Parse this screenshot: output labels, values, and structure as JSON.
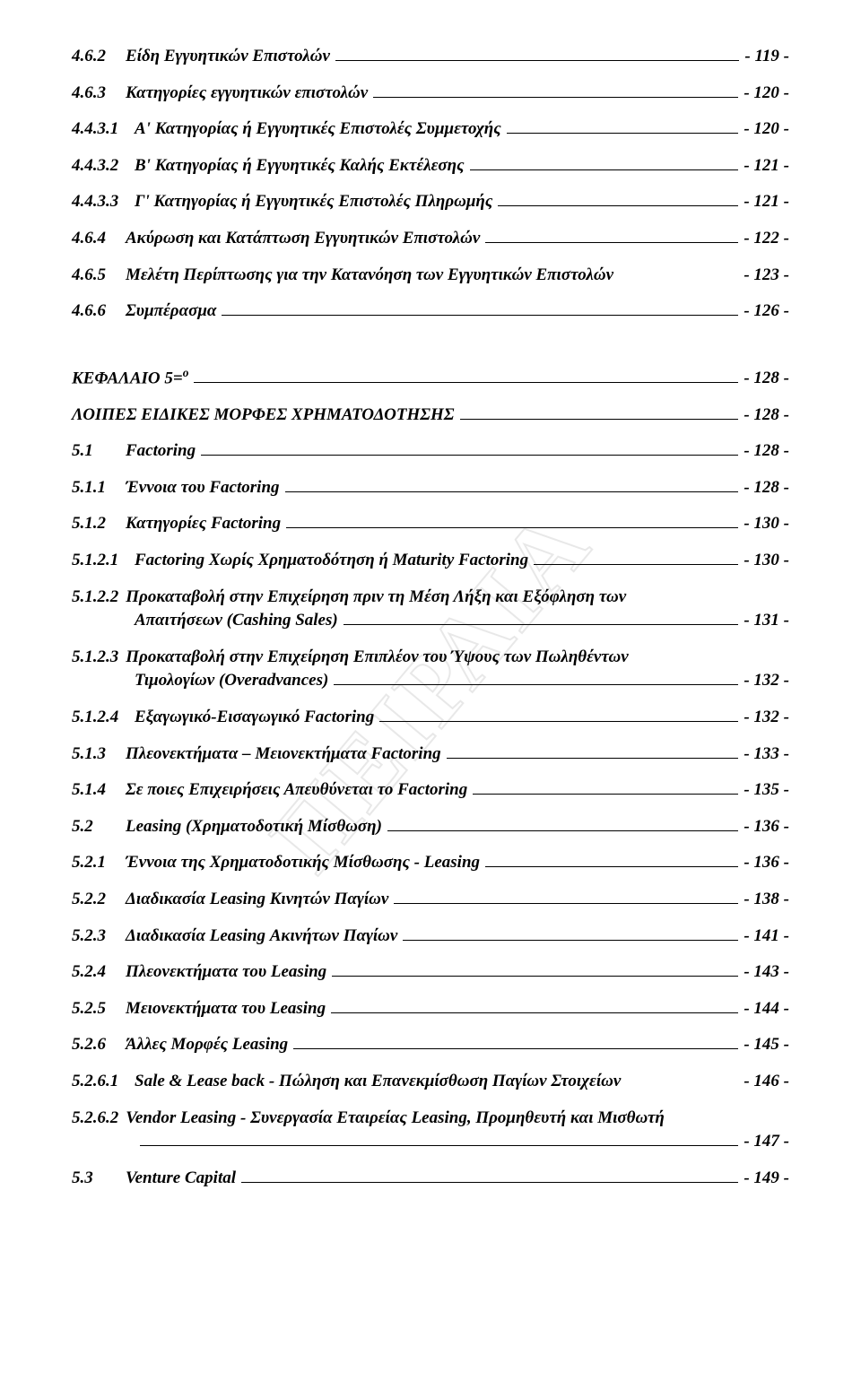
{
  "watermark": "ΠΕΙΡΑΙΑ",
  "entries": [
    {
      "n": "4.6.2",
      "t": "Είδη Εγγυητικών Επιστολών",
      "p": "- 119 -"
    },
    {
      "n": "4.6.3",
      "t": "Κατηγορίες εγγυητικών επιστολών",
      "p": "- 120 -"
    },
    {
      "n": "4.4.3.1",
      "t": "Α' Κατηγορίας ή Εγγυητικές Επιστολές Συμμετοχής",
      "p": "- 120 -"
    },
    {
      "n": "4.4.3.2",
      "t": "Β' Κατηγορίας ή Εγγυητικές Καλής Εκτέλεσης",
      "p": "- 121 -"
    },
    {
      "n": "4.4.3.3",
      "t": "Γ' Κατηγορίας ή Εγγυητικές Επιστολές Πληρωμής",
      "p": "- 121 -"
    },
    {
      "n": "4.6.4",
      "t": "Ακύρωση και Κατάπτωση Εγγυητικών Επιστολών",
      "p": "- 122 -"
    },
    {
      "n": "4.6.5",
      "t": "Μελέτη Περίπτωσης για την Κατανόηση των Εγγυητικών Επιστολών",
      "p": "- 123 -",
      "noleader": true
    },
    {
      "n": "4.6.6",
      "t": "Συμπέρασμα",
      "p": "- 126 -"
    }
  ],
  "chapter": {
    "title": "ΚΕΦΑΛΑΙΟ 5=",
    "sup": "ο",
    "p": "- 128 -"
  },
  "chapter_sub": {
    "t": "ΛΟΙΠΕΣ ΕΙΔΙΚΕΣ ΜΟΡΦΕΣ ΧΡΗΜΑΤΟΔΟΤΗΣΗΣ",
    "p": "- 128 -"
  },
  "entries2": [
    {
      "n": "5.1",
      "t": "Factoring",
      "p": "- 128 -"
    },
    {
      "n": "5.1.1",
      "t": "Έννοια του Factoring",
      "p": "- 128 -"
    },
    {
      "n": "5.1.2",
      "t": "Κατηγορίες Factoring",
      "p": "- 130 -"
    },
    {
      "n": "5.1.2.1",
      "t": "Factoring Χωρίς Χρηματοδότηση ή Maturity Factoring",
      "p": "- 130 -"
    }
  ],
  "wrap1": {
    "n": "5.1.2.2",
    "l1": "Προκαταβολή στην Επιχείρηση πριν τη Μέση Λήξη και Εξόφληση των",
    "l2": "Απαιτήσεων (Cashing Sales)",
    "p": "- 131 -"
  },
  "wrap2": {
    "n": "5.1.2.3",
    "l1": "Προκαταβολή στην Επιχείρηση Επιπλέον του Ύψους των Πωληθέντων",
    "l2": "Τιμολογίων (Overadvances)",
    "p": "- 132 -"
  },
  "entries3": [
    {
      "n": "5.1.2.4",
      "t": "Εξαγωγικό-Εισαγωγικό Factoring",
      "p": "- 132 -"
    },
    {
      "n": "5.1.3",
      "t": "Πλεονεκτήματα – Μειονεκτήματα Factoring",
      "p": "- 133 -"
    },
    {
      "n": "5.1.4",
      "t": "Σε ποιες Επιχειρήσεις Απευθύνεται το Factoring",
      "p": "- 135 -"
    },
    {
      "n": "5.2",
      "t": "Leasing (Χρηματοδοτική Μίσθωση)",
      "p": "- 136 -"
    },
    {
      "n": "5.2.1",
      "t": "Έννοια της Χρηματοδοτικής Μίσθωσης - Leasing",
      "p": "- 136 -"
    },
    {
      "n": "5.2.2",
      "t": "Διαδικασία Leasing Κινητών Παγίων",
      "p": "- 138 -"
    },
    {
      "n": "5.2.3",
      "t": "Διαδικασία Leasing Ακινήτων Παγίων",
      "p": "- 141 -"
    },
    {
      "n": "5.2.4",
      "t": "Πλεονεκτήματα του Leasing",
      "p": "- 143 -"
    },
    {
      "n": "5.2.5",
      "t": "Μειονεκτήματα του Leasing",
      "p": "- 144 -"
    },
    {
      "n": "5.2.6",
      "t": "Άλλες Μορφές Leasing",
      "p": "- 145 -"
    },
    {
      "n": "5.2.6.1",
      "t": "Sale & Lease back - Πώληση και Επανεκμίσθωση Παγίων Στοιχείων",
      "p": "- 146 -",
      "noleader": true
    }
  ],
  "wrap3": {
    "n": "5.2.6.2",
    "l1": "Vendor Leasing - Συνεργασία Εταιρείας Leasing, Προμηθευτή και Μισθωτή",
    "p": "- 147 -"
  },
  "entries4": [
    {
      "n": "5.3",
      "t": "Venture Capital",
      "p": "- 149 -"
    }
  ]
}
